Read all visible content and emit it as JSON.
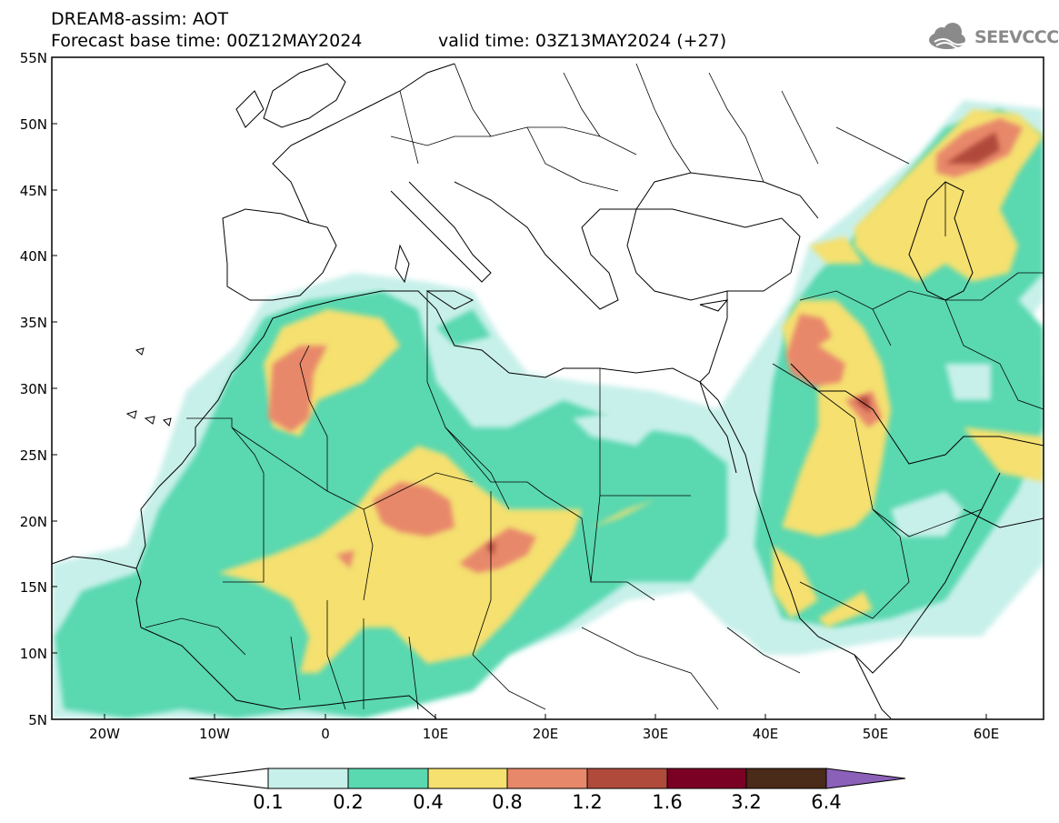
{
  "header": {
    "line1": "DREAM8-assim: AOT",
    "line2": "Forecast base time: 00Z12MAY2024",
    "line3": "valid time: 03Z13MAY2024 (+27)"
  },
  "logo": {
    "text": "SEEVCCC",
    "icon": "cloud-logo-icon"
  },
  "map": {
    "lon_range": [
      -25,
      65
    ],
    "lat_range": [
      5,
      55
    ],
    "y_ticks": [
      "5N",
      "10N",
      "15N",
      "20N",
      "25N",
      "30N",
      "35N",
      "40N",
      "45N",
      "50N",
      "55N"
    ],
    "x_ticks": [
      "20W",
      "10W",
      "0",
      "10E",
      "20E",
      "30E",
      "40E",
      "50E",
      "60E"
    ]
  },
  "colorbar": {
    "labels": [
      "0.1",
      "0.2",
      "0.4",
      "0.8",
      "1.2",
      "1.6",
      "3.2",
      "6.4"
    ],
    "colors": [
      "#ffffff",
      "#c8f0ea",
      "#5ad8b0",
      "#f5e070",
      "#e8886a",
      "#b04a3a",
      "#7a0024",
      "#4a2a18",
      "#8b60b8"
    ]
  }
}
